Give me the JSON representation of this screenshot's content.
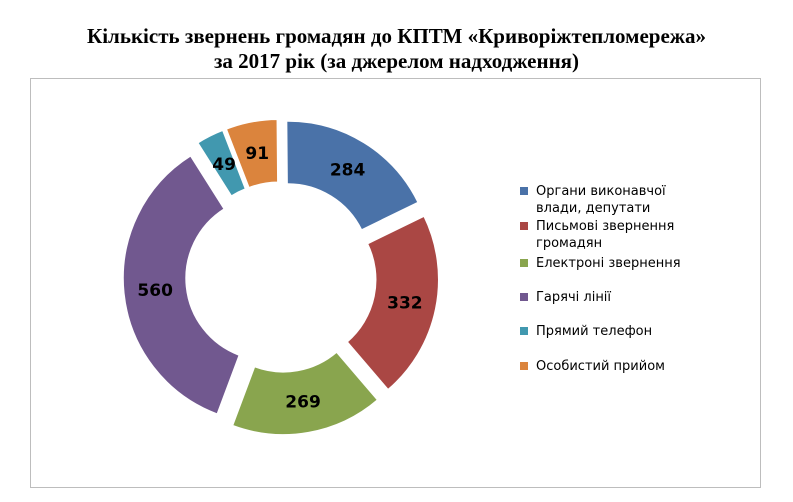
{
  "chart_data": {
    "type": "pie",
    "title_lines": [
      "Кількість  звернень громадян до КПТМ «Криворіжтепломережа»",
      "за 2017 рік (за джерелом надходження)"
    ],
    "categories": [
      "Органи виконавчої влади, депутати",
      "Письмові звернення громадян",
      "Електроні звернення",
      "Гарячі лінії",
      "Прямий телефон",
      "Особистий прийом"
    ],
    "legend_lines": [
      [
        "Органи виконавчої",
        "влади, депутати"
      ],
      [
        "Письмові звернення",
        "громадян"
      ],
      [
        "Електроні звернення"
      ],
      [
        "Гарячі лінії"
      ],
      [
        "Прямий телефон"
      ],
      [
        "Особистий прийом"
      ]
    ],
    "values": [
      284,
      332,
      269,
      560,
      49,
      91
    ],
    "colors": [
      "#4a72a8",
      "#aa4744",
      "#89a54e",
      "#71588f",
      "#4198af",
      "#db843d"
    ],
    "style": "exploded doughnut",
    "legend_position": "right",
    "data_labels": true
  }
}
